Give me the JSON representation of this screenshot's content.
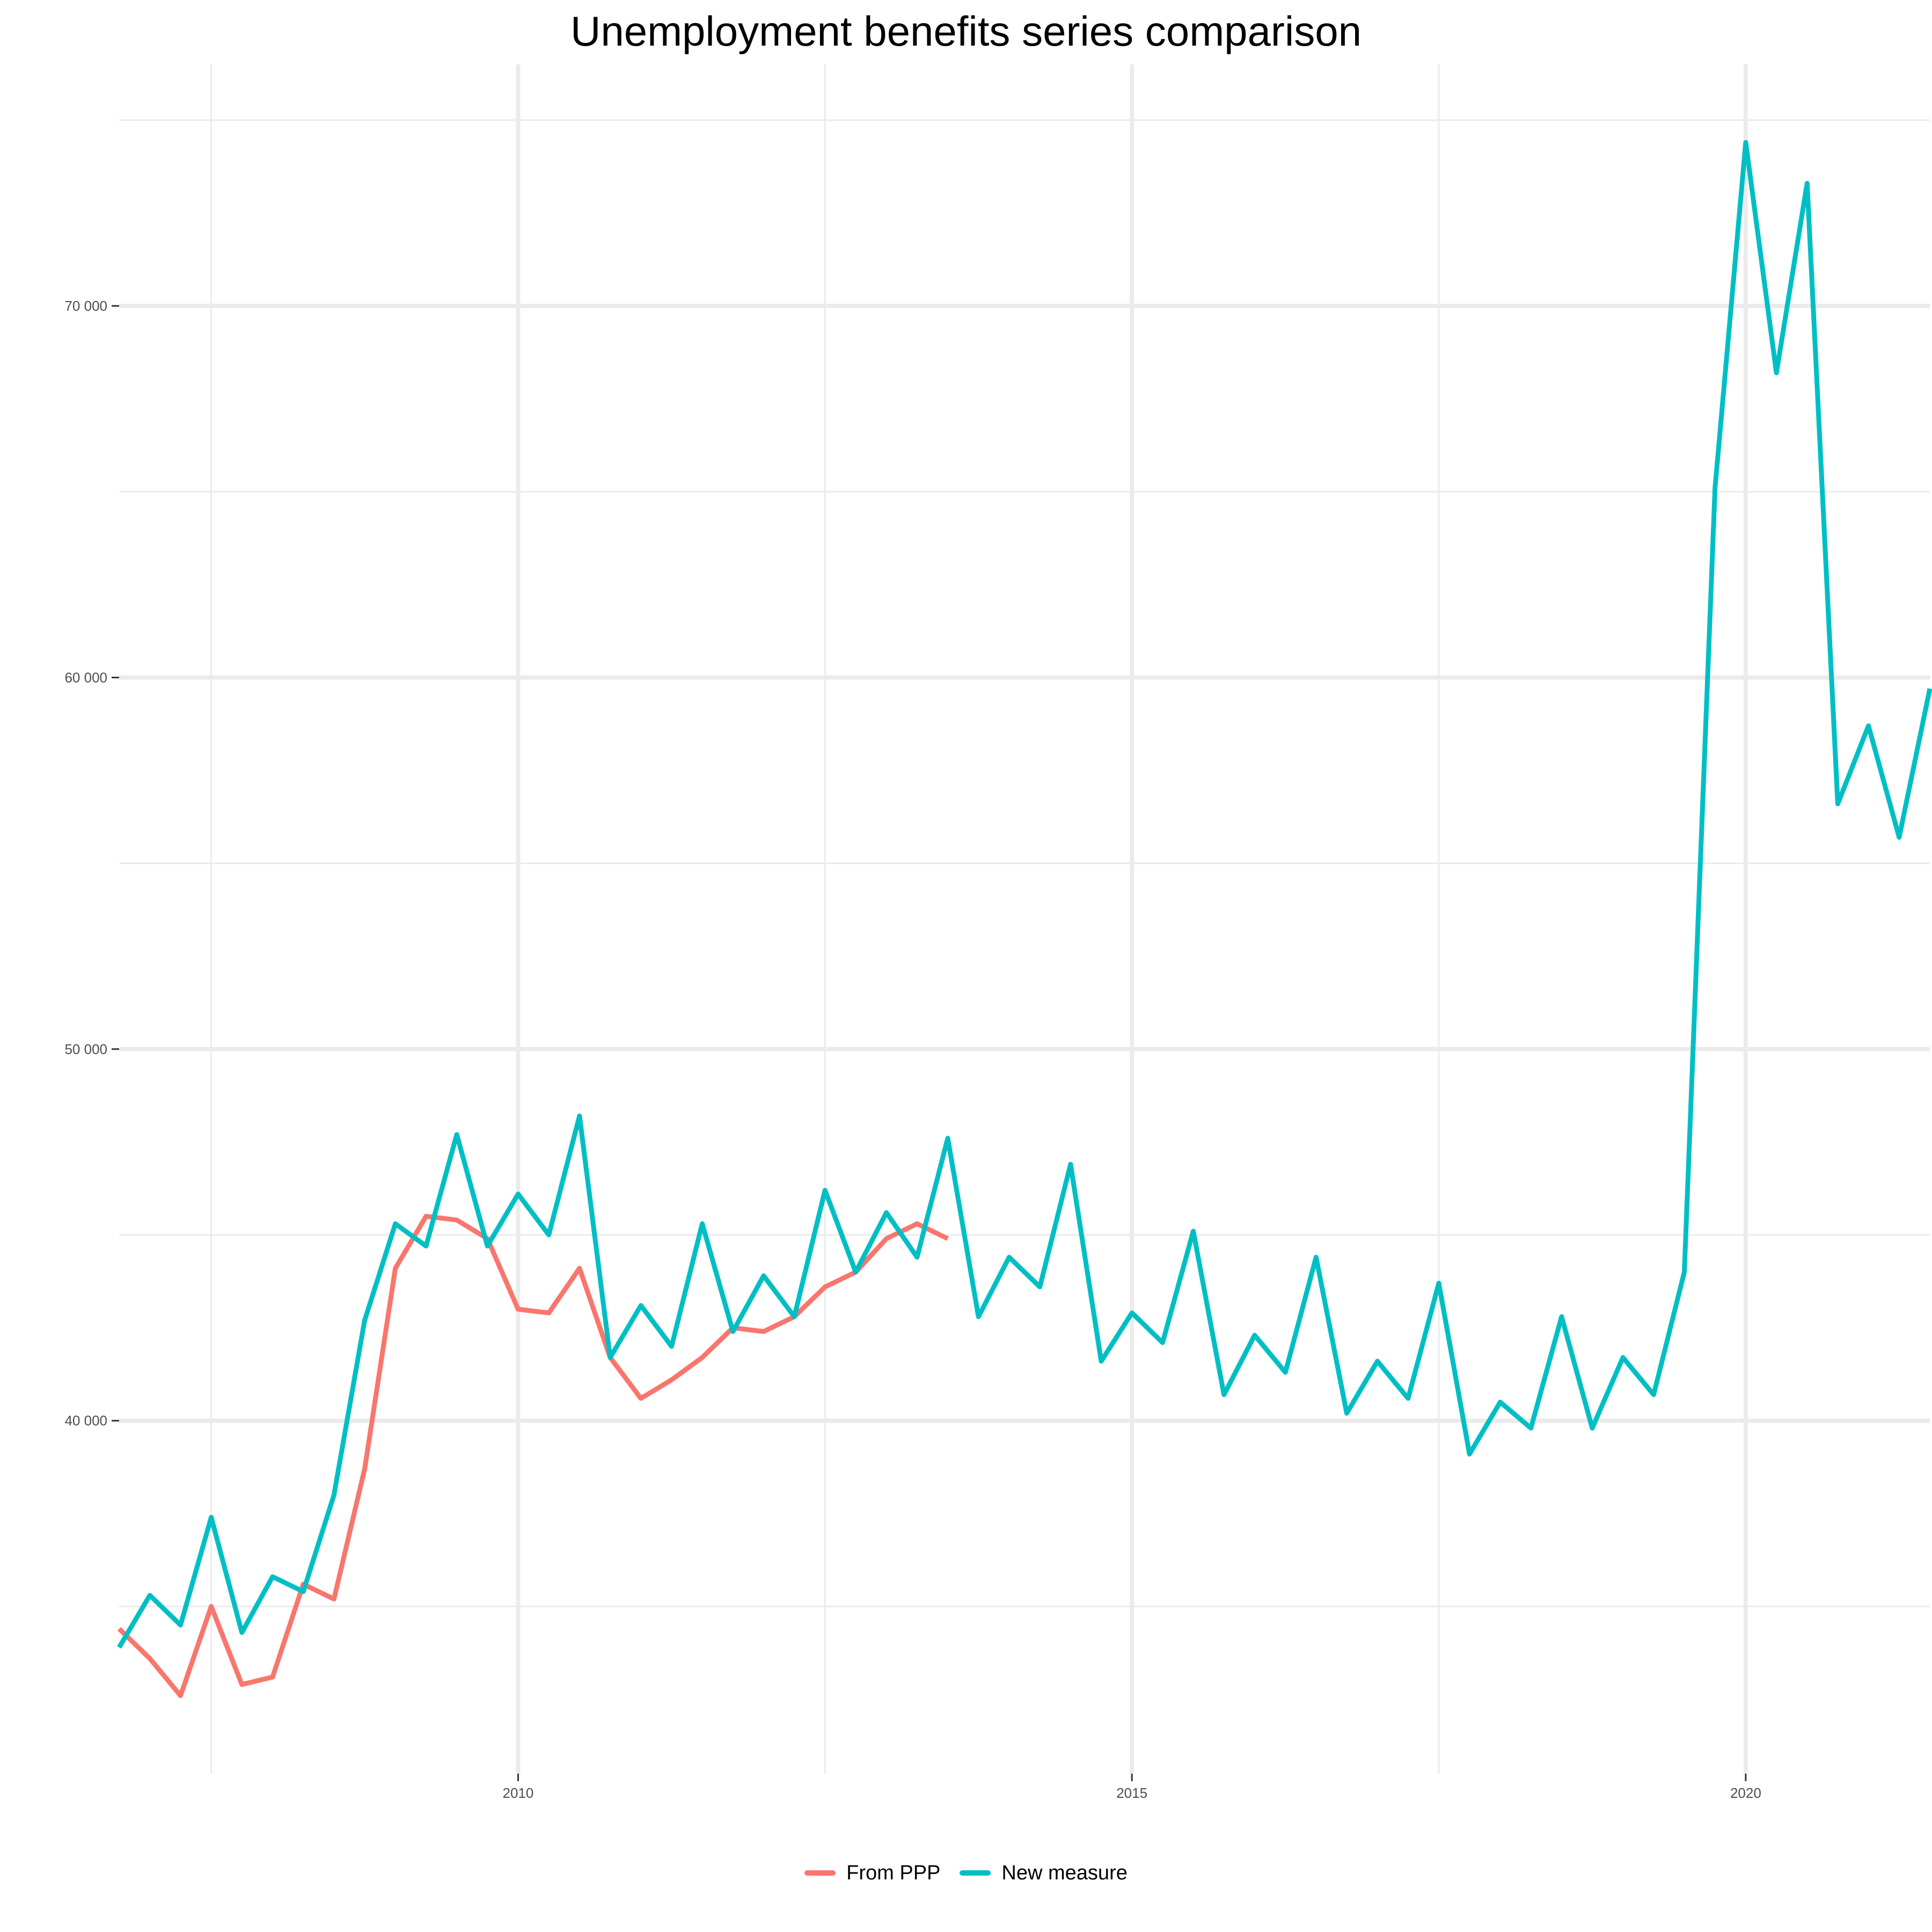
{
  "chart_data": {
    "type": "line",
    "title": "Unemployment benefits series comparison",
    "xlabel": "",
    "ylabel": "",
    "xlim": [
      2006.75,
      2021.5
    ],
    "ylim": [
      30500,
      76500
    ],
    "x_ticks": [
      2010,
      2015,
      2020
    ],
    "x_tick_labels": [
      "2010",
      "2015",
      "2020"
    ],
    "y_ticks": [
      40000,
      50000,
      60000,
      70000
    ],
    "y_tick_labels": [
      "40 000",
      "50 000",
      "60 000",
      "70 000"
    ],
    "grid": true,
    "legend_position": "bottom",
    "series": [
      {
        "name": "From PPP",
        "color": "#F8766D",
        "x": [
          2006.75,
          2007.0,
          2007.25,
          2007.5,
          2007.75,
          2008.0,
          2008.25,
          2008.5,
          2008.75,
          2009.0,
          2009.25,
          2009.5,
          2009.75,
          2010.0,
          2010.25,
          2010.5,
          2010.75,
          2011.0,
          2011.25,
          2011.5,
          2011.75,
          2012.0,
          2012.25,
          2012.5,
          2012.75,
          2013.0,
          2013.25,
          2013.5,
          2013.75
        ],
        "values": [
          34400,
          33600,
          32600,
          35000,
          32900,
          33100,
          35600,
          35200,
          38700,
          44100,
          45500,
          45400,
          44900,
          43000,
          42900,
          44100,
          41700,
          40600,
          41100,
          41700,
          42500,
          42400,
          42800,
          43600,
          44000,
          44900,
          45300,
          44900,
          null
        ]
      },
      {
        "name": "New measure",
        "color": "#00BFC4",
        "x": [
          2006.75,
          2007.0,
          2007.25,
          2007.5,
          2007.75,
          2008.0,
          2008.25,
          2008.5,
          2008.75,
          2009.0,
          2009.25,
          2009.5,
          2009.75,
          2010.0,
          2010.25,
          2010.5,
          2010.75,
          2011.0,
          2011.25,
          2011.5,
          2011.75,
          2012.0,
          2012.25,
          2012.5,
          2012.75,
          2013.0,
          2013.25,
          2013.5,
          2013.75,
          2014.0,
          2014.25,
          2014.5,
          2014.75,
          2015.0,
          2015.25,
          2015.5,
          2015.75,
          2016.0,
          2016.25,
          2016.5,
          2016.75,
          2017.0,
          2017.25,
          2017.5,
          2017.75,
          2018.0,
          2018.25,
          2018.5,
          2018.75,
          2019.0,
          2019.25,
          2019.5,
          2019.75,
          2020.0,
          2020.25,
          2020.5,
          2020.75,
          2021.0,
          2021.25,
          2021.5
        ],
        "values": [
          33900,
          35300,
          34500,
          37400,
          34300,
          35800,
          35400,
          38000,
          42700,
          45300,
          44700,
          47700,
          44700,
          46100,
          45000,
          48200,
          41700,
          43100,
          42000,
          45300,
          42400,
          43900,
          42800,
          46200,
          44000,
          45600,
          44400,
          47600,
          42800,
          44400,
          43600,
          46900,
          41600,
          42900,
          42100,
          45100,
          40700,
          42300,
          41300,
          44400,
          40200,
          41600,
          40600,
          43700,
          39100,
          40500,
          39800,
          42800,
          39800,
          41700,
          40700,
          44000,
          65100,
          74400,
          68200,
          73300,
          56600,
          58700,
          55700,
          59700
        ]
      }
    ]
  }
}
